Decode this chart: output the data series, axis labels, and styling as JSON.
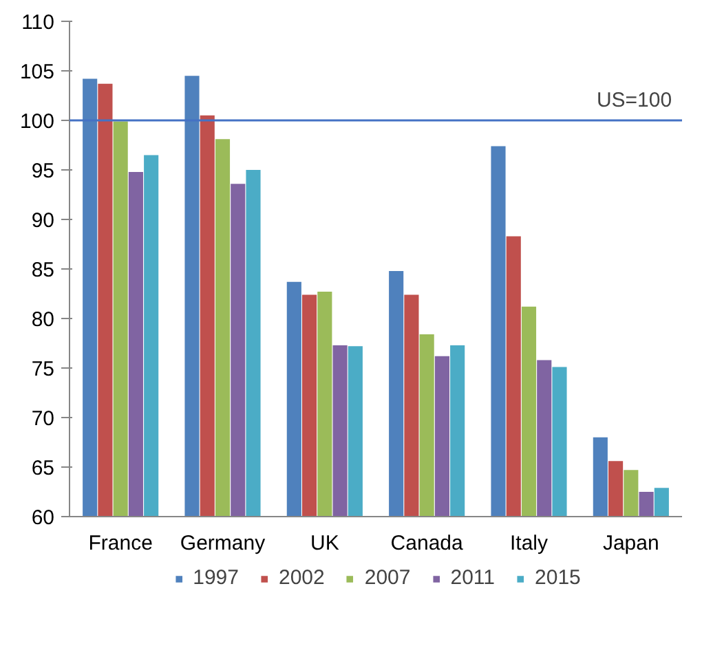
{
  "chart_data": {
    "type": "bar",
    "categories": [
      "France",
      "Germany",
      "UK",
      "Canada",
      "Italy",
      "Japan"
    ],
    "series": [
      {
        "name": "1997",
        "color": "#4f81bd",
        "values": [
          104.2,
          104.5,
          83.7,
          84.8,
          97.4,
          68.0
        ]
      },
      {
        "name": "2002",
        "color": "#c0504d",
        "values": [
          103.7,
          100.5,
          82.4,
          82.4,
          88.3,
          65.6
        ]
      },
      {
        "name": "2007",
        "color": "#9bbb59",
        "values": [
          99.9,
          98.1,
          82.7,
          78.4,
          81.2,
          64.7
        ]
      },
      {
        "name": "2011",
        "color": "#8064a2",
        "values": [
          94.8,
          93.6,
          77.3,
          76.2,
          75.8,
          62.5
        ]
      },
      {
        "name": "2015",
        "color": "#4bacc6",
        "values": [
          96.5,
          95.0,
          77.2,
          77.3,
          75.1,
          62.9
        ]
      }
    ],
    "ylim": [
      60,
      110
    ],
    "yticks": [
      60,
      65,
      70,
      75,
      80,
      85,
      90,
      95,
      100,
      105,
      110
    ],
    "ref_lines": [
      {
        "axis": "y",
        "value": 100,
        "label": "US=100",
        "color": "#4472c4"
      }
    ],
    "grid": false,
    "legend": "bottom"
  }
}
